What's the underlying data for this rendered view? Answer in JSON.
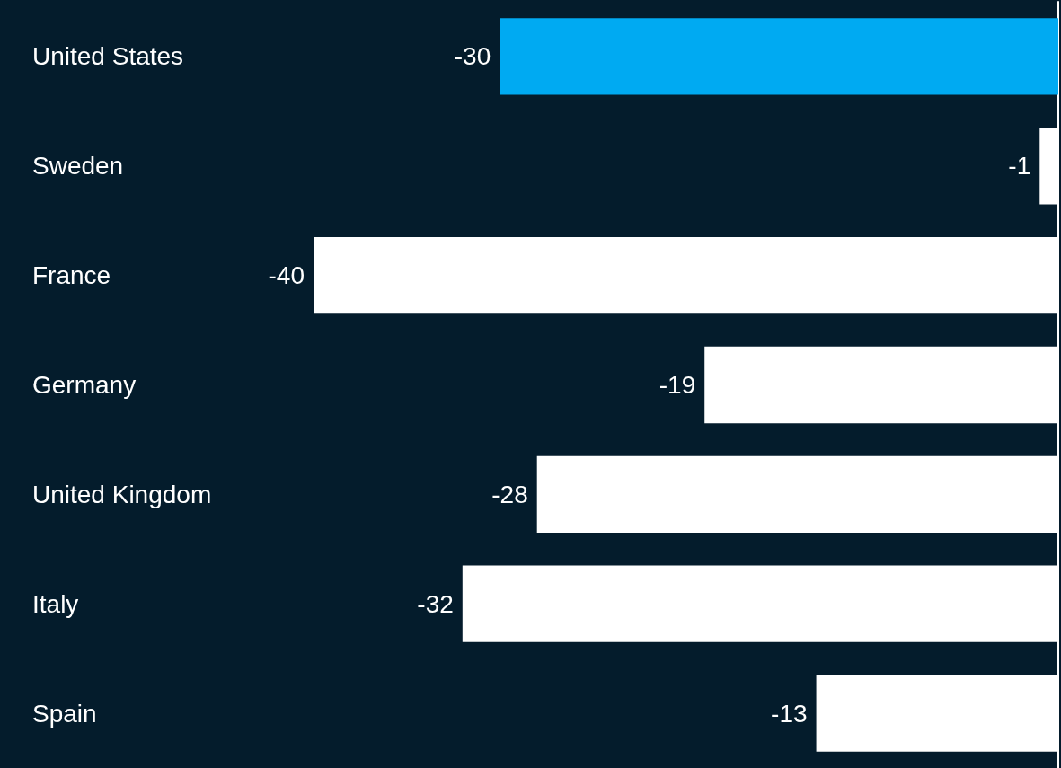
{
  "chart_data": {
    "type": "bar",
    "orientation": "horizontal",
    "categories": [
      "United States",
      "Sweden",
      "France",
      "Germany",
      "United Kingdom",
      "Italy",
      "Spain"
    ],
    "values": [
      -30,
      -1,
      -40,
      -19,
      -28,
      -32,
      -13
    ],
    "colors": [
      "#00aaf2",
      "#ffffff",
      "#ffffff",
      "#ffffff",
      "#ffffff",
      "#ffffff",
      "#ffffff"
    ],
    "data_labels": true
  }
}
